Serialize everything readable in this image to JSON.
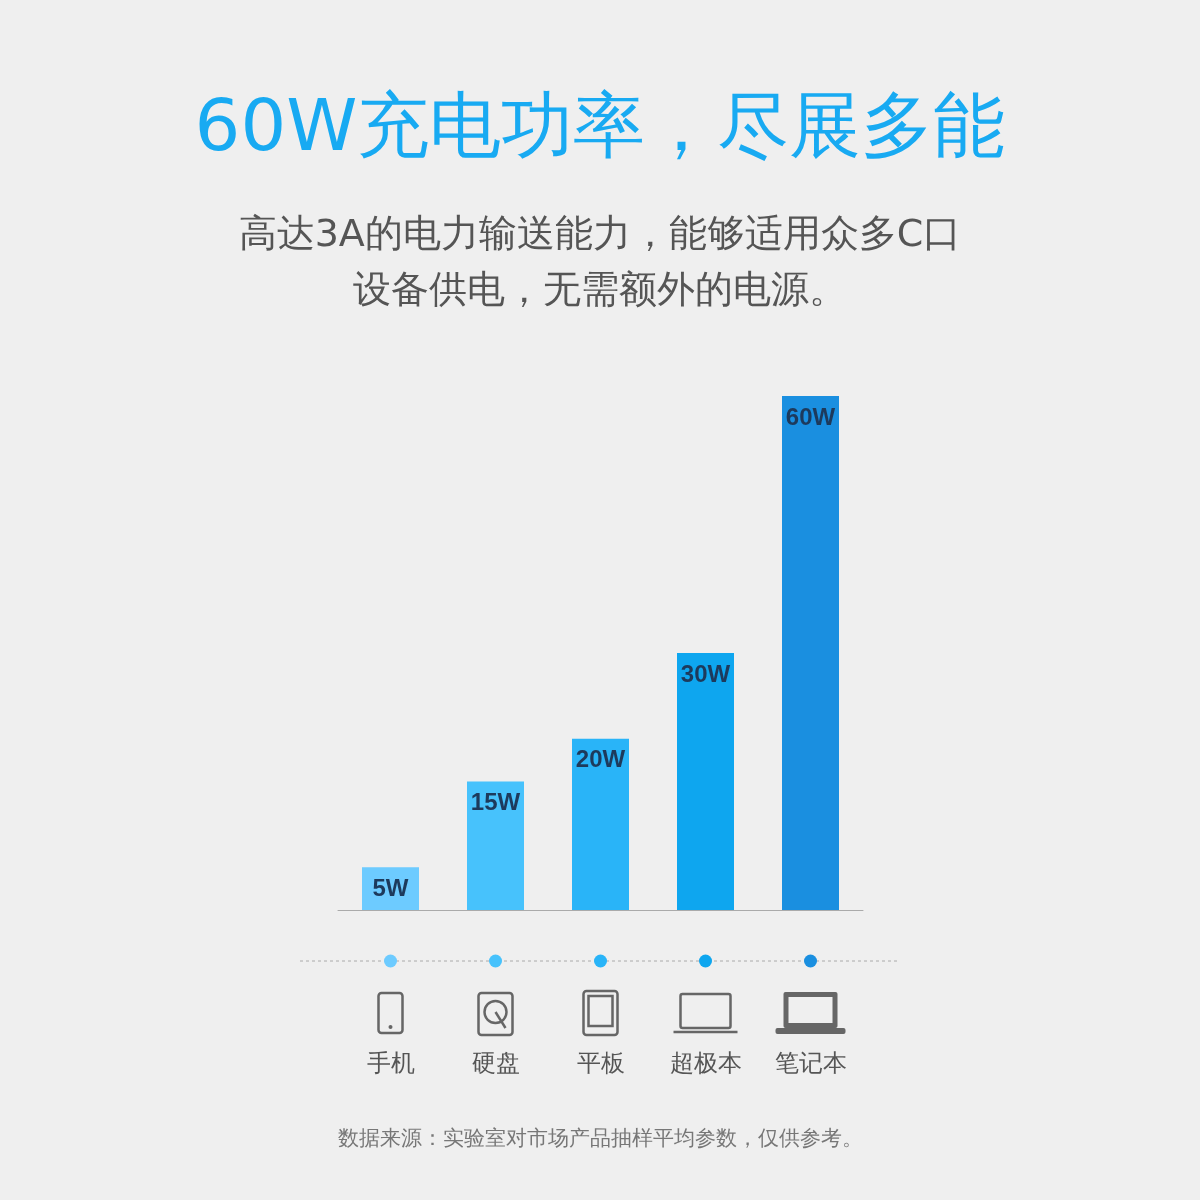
{
  "chart_data": {
    "type": "bar",
    "title": "60W充电功率，尽展多能",
    "subtitle": "高达3A的电力输送能力，能够适用众多C口设备供电，无需额外的电源。",
    "categories": [
      "手机",
      "硬盘",
      "平板",
      "超极本",
      "笔记本"
    ],
    "values": [
      5,
      15,
      20,
      30,
      60
    ],
    "colors": [
      "#6dcbff",
      "#47c2fc",
      "#29b4f8",
      "#0ea6ef",
      "#1a8fe0"
    ],
    "value_labels": [
      "5W",
      "15W",
      "20W",
      "30W",
      "60W"
    ],
    "annotations": [
      "数据来源：实验室对市场产品抽样平均参数，仅供参考。"
    ],
    "grid": false
  }
}
